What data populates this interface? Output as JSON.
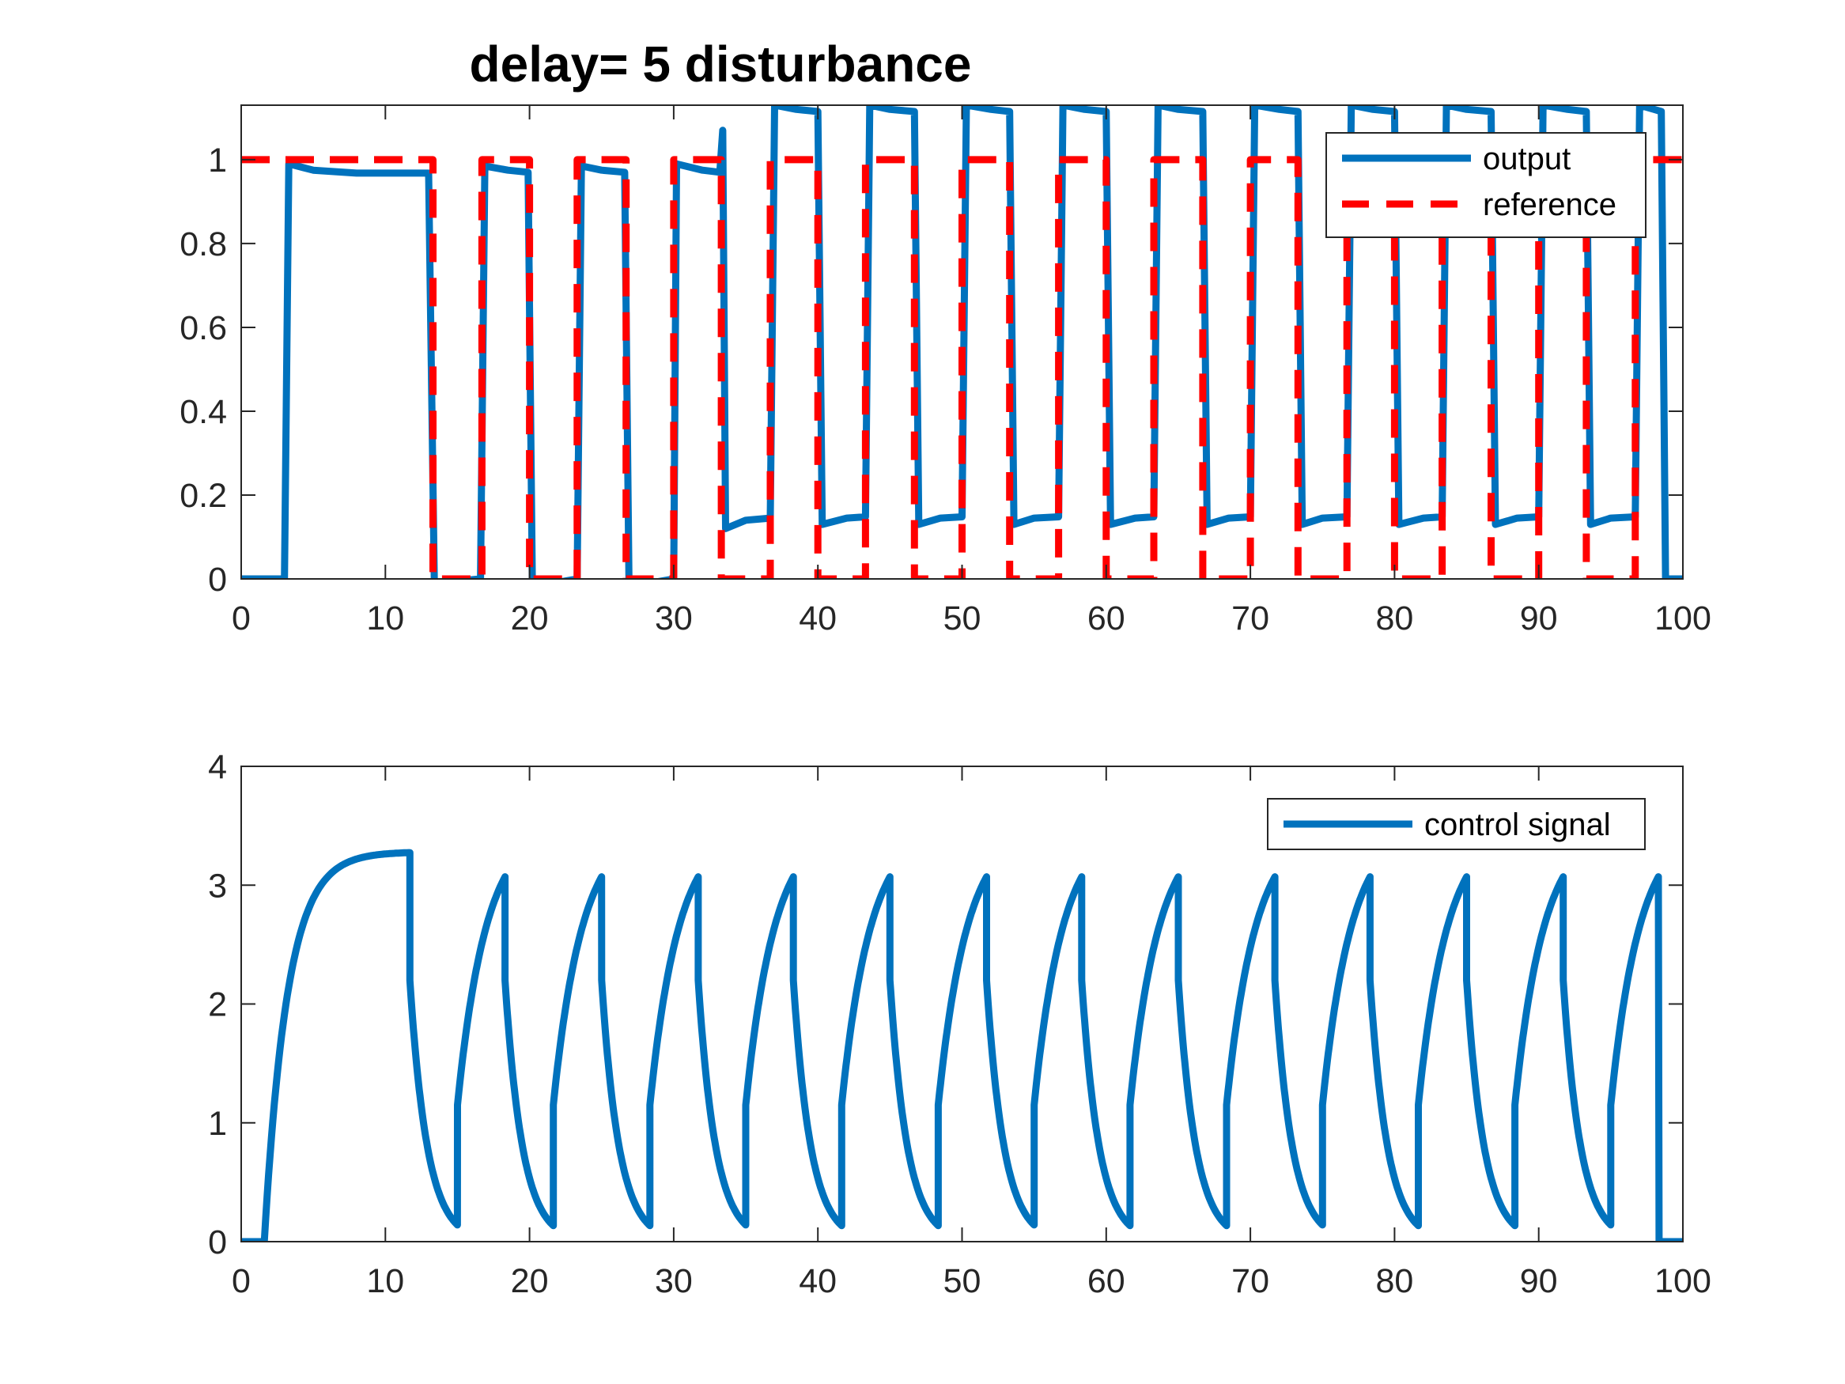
{
  "figure": {
    "title": "delay= 5  disturbance"
  },
  "colors": {
    "output": "#0072BD",
    "reference": "#FF0000",
    "control": "#0072BD",
    "axes": "#262626"
  },
  "chart_data": [
    {
      "type": "line",
      "title": "delay= 5  disturbance",
      "xlim": [
        0,
        100
      ],
      "ylim": [
        0,
        1.13
      ],
      "xticks": [
        0,
        10,
        20,
        30,
        40,
        50,
        60,
        70,
        80,
        90,
        100
      ],
      "yticks": [
        0,
        0.2,
        0.4,
        0.6,
        0.8,
        1
      ],
      "ytick_labels": [
        "0",
        "0.2",
        "0.4",
        "0.6",
        "0.8",
        "1"
      ],
      "legend_position": "top-right",
      "grid": false,
      "series": [
        {
          "name": "output",
          "style": "solid",
          "points": [
            [
              0,
              0
            ],
            [
              3,
              0
            ],
            [
              3.3,
              0.99
            ],
            [
              5,
              0.975
            ],
            [
              8,
              0.968
            ],
            [
              13,
              0.968
            ],
            [
              13.4,
              -0.02
            ],
            [
              14,
              -0.015
            ],
            [
              15,
              -0.005
            ],
            [
              16.6,
              0
            ],
            [
              16.9,
              0.985
            ],
            [
              18.5,
              0.975
            ],
            [
              19.9,
              0.97
            ],
            [
              20.2,
              -0.02
            ],
            [
              21,
              -0.015
            ],
            [
              22,
              -0.008
            ],
            [
              23.3,
              0
            ],
            [
              23.6,
              0.985
            ],
            [
              25,
              0.975
            ],
            [
              26.6,
              0.97
            ],
            [
              26.9,
              -0.02
            ],
            [
              28,
              -0.012
            ],
            [
              30,
              0
            ],
            [
              30.2,
              0.99
            ],
            [
              32,
              0.975
            ],
            [
              33.2,
              0.97
            ],
            [
              33.4,
              1.07
            ],
            [
              33.6,
              0.12
            ],
            [
              35,
              0.14
            ],
            [
              36.7,
              0.145
            ],
            [
              37,
              1.13
            ],
            [
              38.5,
              1.12
            ],
            [
              40,
              1.115
            ],
            [
              40.3,
              0.13
            ],
            [
              42,
              0.145
            ],
            [
              43.3,
              0.148
            ],
            [
              43.6,
              1.13
            ],
            [
              45,
              1.12
            ],
            [
              46.7,
              1.115
            ],
            [
              47,
              0.13
            ],
            [
              48.5,
              0.145
            ],
            [
              50,
              0.148
            ],
            [
              50.3,
              1.13
            ],
            [
              52,
              1.12
            ],
            [
              53.3,
              1.115
            ],
            [
              53.6,
              0.13
            ],
            [
              55,
              0.145
            ],
            [
              56.7,
              0.148
            ],
            [
              57,
              1.13
            ],
            [
              58.5,
              1.12
            ],
            [
              60,
              1.115
            ],
            [
              60.3,
              0.13
            ],
            [
              62,
              0.145
            ],
            [
              63.3,
              0.148
            ],
            [
              63.6,
              1.13
            ],
            [
              65,
              1.12
            ],
            [
              66.7,
              1.115
            ],
            [
              67,
              0.13
            ],
            [
              68.5,
              0.145
            ],
            [
              70,
              0.148
            ],
            [
              70.3,
              1.13
            ],
            [
              72,
              1.12
            ],
            [
              73.3,
              1.115
            ],
            [
              73.6,
              0.13
            ],
            [
              75,
              0.145
            ],
            [
              76.7,
              0.148
            ],
            [
              77,
              1.13
            ],
            [
              78.5,
              1.12
            ],
            [
              80,
              1.115
            ],
            [
              80.3,
              0.13
            ],
            [
              82,
              0.145
            ],
            [
              83.3,
              0.148
            ],
            [
              83.6,
              1.13
            ],
            [
              85,
              1.12
            ],
            [
              86.7,
              1.115
            ],
            [
              87,
              0.13
            ],
            [
              88.5,
              0.145
            ],
            [
              90,
              0.148
            ],
            [
              90.3,
              1.13
            ],
            [
              92,
              1.12
            ],
            [
              93.3,
              1.115
            ],
            [
              93.6,
              0.13
            ],
            [
              95,
              0.145
            ],
            [
              96.7,
              0.148
            ],
            [
              97,
              1.13
            ],
            [
              98,
              1.12
            ],
            [
              98.5,
              1.115
            ],
            [
              98.8,
              0
            ],
            [
              100,
              0
            ]
          ]
        },
        {
          "name": "reference",
          "style": "dashed",
          "points": [
            [
              0,
              1
            ],
            [
              13.3,
              1
            ],
            [
              13.3,
              0
            ],
            [
              16.7,
              0
            ],
            [
              16.7,
              1
            ],
            [
              20,
              1
            ],
            [
              20,
              0
            ],
            [
              23.3,
              0
            ],
            [
              23.3,
              1
            ],
            [
              26.7,
              1
            ],
            [
              26.7,
              0
            ],
            [
              30,
              0
            ],
            [
              30,
              1
            ],
            [
              33.3,
              1
            ],
            [
              33.3,
              0
            ],
            [
              36.7,
              0
            ],
            [
              36.7,
              1
            ],
            [
              40,
              1
            ],
            [
              40,
              0
            ],
            [
              43.3,
              0
            ],
            [
              43.3,
              1
            ],
            [
              46.7,
              1
            ],
            [
              46.7,
              0
            ],
            [
              50,
              0
            ],
            [
              50,
              1
            ],
            [
              53.3,
              1
            ],
            [
              53.3,
              0
            ],
            [
              56.7,
              0
            ],
            [
              56.7,
              1
            ],
            [
              60,
              1
            ],
            [
              60,
              0
            ],
            [
              63.3,
              0
            ],
            [
              63.3,
              1
            ],
            [
              66.7,
              1
            ],
            [
              66.7,
              0
            ],
            [
              70,
              0
            ],
            [
              70,
              1
            ],
            [
              73.3,
              1
            ],
            [
              73.3,
              0
            ],
            [
              76.7,
              0
            ],
            [
              76.7,
              1
            ],
            [
              80,
              1
            ],
            [
              80,
              0
            ],
            [
              83.3,
              0
            ],
            [
              83.3,
              1
            ],
            [
              86.7,
              1
            ],
            [
              86.7,
              0
            ],
            [
              90,
              0
            ],
            [
              90,
              1
            ],
            [
              93.3,
              1
            ],
            [
              93.3,
              0
            ],
            [
              96.7,
              0
            ],
            [
              96.7,
              1
            ],
            [
              100,
              1
            ]
          ]
        }
      ]
    },
    {
      "type": "line",
      "xlim": [
        0,
        100
      ],
      "ylim": [
        0,
        4
      ],
      "xticks": [
        0,
        10,
        20,
        30,
        40,
        50,
        60,
        70,
        80,
        90,
        100
      ],
      "yticks": [
        0,
        1,
        2,
        3,
        4
      ],
      "ytick_labels": [
        "0",
        "1",
        "2",
        "3",
        "4"
      ],
      "legend_position": "top-right",
      "grid": false,
      "series": [
        {
          "name": "control signal",
          "style": "solid",
          "model": {
            "initial": {
              "t_start": 1.6,
              "t_end": 11.7,
              "u0": 0,
              "u_ss": 3.28,
              "tau": 1.6
            },
            "cycles": [
              {
                "start": 11.7,
                "peak": 18.3
              },
              {
                "start": 18.3,
                "peak": 25.0
              },
              {
                "start": 25.0,
                "peak": 31.7
              },
              {
                "start": 31.7,
                "peak": 38.3
              },
              {
                "start": 38.3,
                "peak": 45.0
              },
              {
                "start": 45.0,
                "peak": 51.7
              },
              {
                "start": 51.7,
                "peak": 58.3
              },
              {
                "start": 58.3,
                "peak": 65.0
              },
              {
                "start": 65.0,
                "peak": 71.7
              },
              {
                "start": 71.7,
                "peak": 78.3
              },
              {
                "start": 78.3,
                "peak": 85.0
              },
              {
                "start": 85.0,
                "peak": 91.7
              },
              {
                "start": 91.7,
                "peak": 98.3
              }
            ],
            "decay_jump": 2.2,
            "decay_tau": 1.2,
            "rise_jump_to": 1.15,
            "rise_tau": 2.0,
            "peak_value": 3.07,
            "end": {
              "t_drop": 98.3,
              "value": 0
            }
          }
        }
      ]
    }
  ]
}
